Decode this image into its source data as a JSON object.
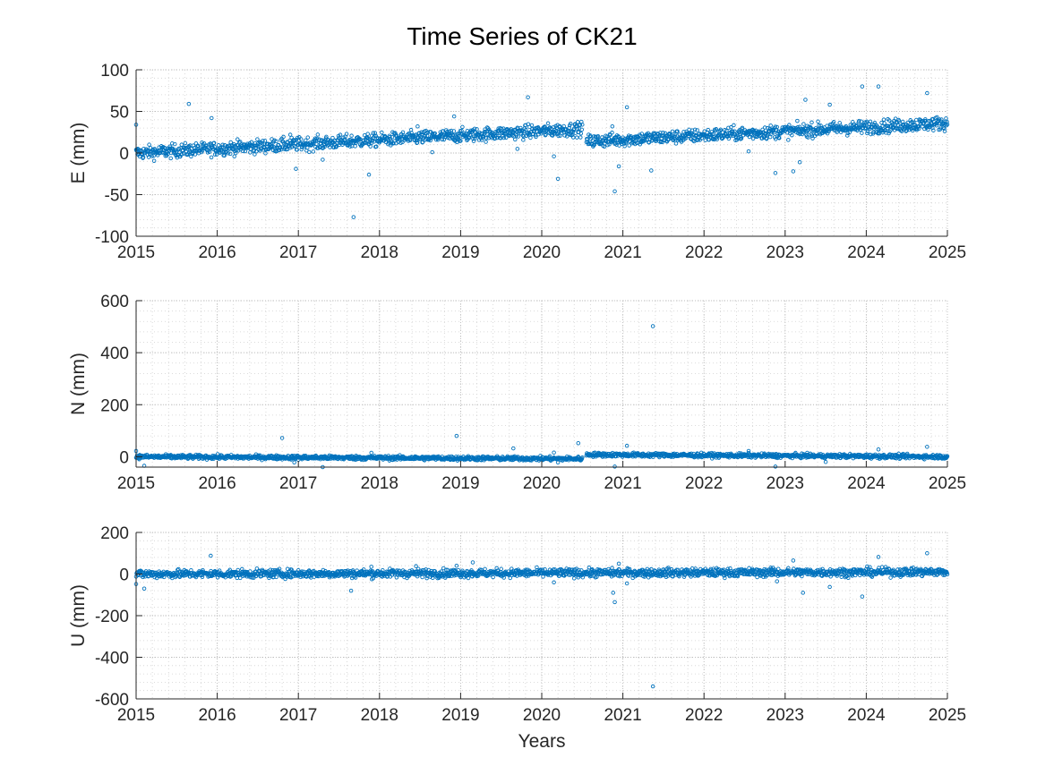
{
  "title": "Time Series of CK21",
  "marker_color": "#0072BD",
  "chart_data": [
    {
      "type": "scatter",
      "name": "E",
      "ylabel": "E (mm)",
      "xlabel": "",
      "xlim": [
        2015,
        2025
      ],
      "ylim": [
        -100,
        100
      ],
      "xticks": [
        "2015",
        "2016",
        "2017",
        "2018",
        "2019",
        "2020",
        "2021",
        "2022",
        "2023",
        "2024",
        "2025"
      ],
      "yticks": [
        "-100",
        "-50",
        "0",
        "50",
        "100"
      ],
      "grid": "on (major and minor, dotted)",
      "trend_segments": [
        {
          "x": [
            2015.0,
            2020.5
          ],
          "y": [
            0,
            29
          ],
          "spread": 4
        },
        {
          "x": [
            2020.55,
            2025.0
          ],
          "y": [
            14,
            36
          ],
          "spread": 4
        }
      ],
      "outliers": [
        {
          "x": 2015.0,
          "y": 34
        },
        {
          "x": 2015.65,
          "y": 59
        },
        {
          "x": 2015.93,
          "y": 42
        },
        {
          "x": 2016.9,
          "y": 22
        },
        {
          "x": 2016.97,
          "y": -19
        },
        {
          "x": 2017.3,
          "y": -8
        },
        {
          "x": 2017.68,
          "y": -77
        },
        {
          "x": 2017.87,
          "y": -26
        },
        {
          "x": 2018.47,
          "y": 32
        },
        {
          "x": 2018.65,
          "y": 1
        },
        {
          "x": 2018.92,
          "y": 44
        },
        {
          "x": 2019.83,
          "y": 67
        },
        {
          "x": 2019.7,
          "y": 5
        },
        {
          "x": 2020.15,
          "y": -4
        },
        {
          "x": 2020.2,
          "y": -31
        },
        {
          "x": 2020.87,
          "y": 32
        },
        {
          "x": 2020.9,
          "y": -46
        },
        {
          "x": 2020.95,
          "y": -16
        },
        {
          "x": 2021.05,
          "y": 55
        },
        {
          "x": 2021.35,
          "y": -21
        },
        {
          "x": 2022.55,
          "y": 2
        },
        {
          "x": 2022.88,
          "y": -24
        },
        {
          "x": 2023.1,
          "y": -22
        },
        {
          "x": 2023.18,
          "y": -11
        },
        {
          "x": 2023.25,
          "y": 64
        },
        {
          "x": 2023.55,
          "y": 58
        },
        {
          "x": 2023.95,
          "y": 80
        },
        {
          "x": 2024.15,
          "y": 80
        },
        {
          "x": 2024.75,
          "y": 72
        }
      ]
    },
    {
      "type": "scatter",
      "name": "N",
      "ylabel": "N (mm)",
      "xlabel": "",
      "xlim": [
        2015,
        2025
      ],
      "ylim": [
        -40,
        600
      ],
      "xticks": [
        "2015",
        "2016",
        "2017",
        "2018",
        "2019",
        "2020",
        "2021",
        "2022",
        "2023",
        "2024",
        "2025"
      ],
      "yticks": [
        "0",
        "200",
        "400",
        "600"
      ],
      "grid": "on (major and minor, dotted)",
      "trend_segments": [
        {
          "x": [
            2015.0,
            2020.5
          ],
          "y": [
            0,
            -8
          ],
          "spread": 4
        },
        {
          "x": [
            2020.55,
            2025.0
          ],
          "y": [
            8,
            0
          ],
          "spread": 4
        }
      ],
      "outliers": [
        {
          "x": 2015.0,
          "y": 22
        },
        {
          "x": 2015.1,
          "y": -35
        },
        {
          "x": 2016.8,
          "y": 72
        },
        {
          "x": 2016.95,
          "y": -22
        },
        {
          "x": 2017.3,
          "y": -40
        },
        {
          "x": 2017.9,
          "y": 15
        },
        {
          "x": 2018.95,
          "y": 80
        },
        {
          "x": 2019.65,
          "y": 32
        },
        {
          "x": 2020.15,
          "y": 16
        },
        {
          "x": 2020.2,
          "y": -22
        },
        {
          "x": 2020.45,
          "y": 52
        },
        {
          "x": 2020.9,
          "y": -38
        },
        {
          "x": 2021.05,
          "y": 42
        },
        {
          "x": 2021.37,
          "y": 502
        },
        {
          "x": 2022.55,
          "y": 22
        },
        {
          "x": 2022.88,
          "y": -38
        },
        {
          "x": 2023.5,
          "y": -20
        },
        {
          "x": 2024.15,
          "y": 28
        },
        {
          "x": 2024.75,
          "y": 38
        }
      ]
    },
    {
      "type": "scatter",
      "name": "U",
      "ylabel": "U (mm)",
      "xlabel": "Years",
      "xlim": [
        2015,
        2025
      ],
      "ylim": [
        -600,
        200
      ],
      "xticks": [
        "2015",
        "2016",
        "2017",
        "2018",
        "2019",
        "2020",
        "2021",
        "2022",
        "2023",
        "2024",
        "2025"
      ],
      "yticks": [
        "-600",
        "-400",
        "-200",
        "0",
        "200"
      ],
      "grid": "on (major and minor, dotted)",
      "trend_segments": [
        {
          "x": [
            2015.0,
            2025.0
          ],
          "y": [
            0,
            10
          ],
          "spread": 10
        }
      ],
      "outliers": [
        {
          "x": 2015.0,
          "y": -48
        },
        {
          "x": 2015.1,
          "y": -70
        },
        {
          "x": 2015.92,
          "y": 88
        },
        {
          "x": 2017.65,
          "y": -80
        },
        {
          "x": 2017.9,
          "y": 35
        },
        {
          "x": 2018.45,
          "y": 38
        },
        {
          "x": 2018.95,
          "y": 40
        },
        {
          "x": 2019.15,
          "y": 56
        },
        {
          "x": 2020.15,
          "y": -40
        },
        {
          "x": 2020.88,
          "y": -90
        },
        {
          "x": 2020.9,
          "y": -135
        },
        {
          "x": 2020.95,
          "y": 50
        },
        {
          "x": 2021.05,
          "y": -45
        },
        {
          "x": 2021.37,
          "y": -540
        },
        {
          "x": 2022.85,
          "y": 30
        },
        {
          "x": 2022.9,
          "y": -35
        },
        {
          "x": 2023.1,
          "y": 65
        },
        {
          "x": 2023.22,
          "y": -90
        },
        {
          "x": 2023.55,
          "y": -62
        },
        {
          "x": 2023.95,
          "y": -108
        },
        {
          "x": 2024.15,
          "y": 82
        },
        {
          "x": 2024.75,
          "y": 100
        }
      ]
    }
  ]
}
